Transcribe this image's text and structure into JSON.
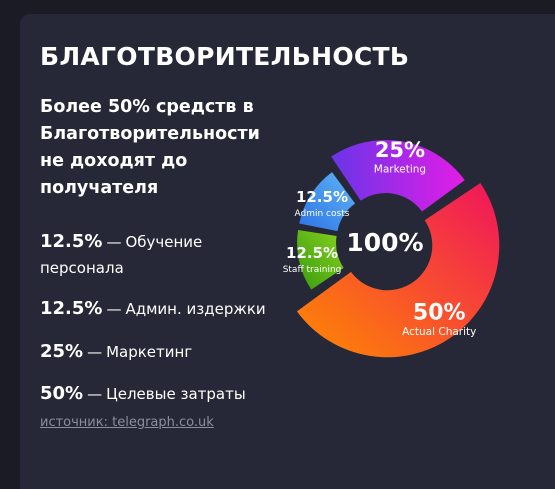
{
  "title": "БЛАГОТВОРИТЕЛЬНОСТЬ",
  "lead_lines": [
    "Более 50% средств в",
    "Благотворительности",
    "не доходят до",
    "получателя"
  ],
  "items": [
    {
      "value": "12.5%",
      "dash": "—",
      "text_lines": [
        "Обучение",
        "персонала"
      ]
    },
    {
      "value": "12.5%",
      "dash": "—",
      "text_lines": [
        "Админ. издержки"
      ]
    },
    {
      "value": "25%",
      "dash": "—",
      "text_lines": [
        "Маркетинг"
      ]
    },
    {
      "value": "50%",
      "dash": "—",
      "text_lines": [
        "Целевые затраты"
      ]
    }
  ],
  "source": "источник: telegraph.co.uk",
  "chart_data": {
    "type": "pie",
    "center_label": "100%",
    "slices": [
      {
        "name": "Actual Charity",
        "label": "50%",
        "value": 50,
        "colors": [
          "#f0145c",
          "#ff8a00"
        ]
      },
      {
        "name": "Staff training",
        "label": "12.5%",
        "value": 12.5,
        "colors": [
          "#3a9a10",
          "#86d21e"
        ]
      },
      {
        "name": "Admin costs",
        "label": "12.5%",
        "value": 12.5,
        "colors": [
          "#2d73e6",
          "#5fb4f4"
        ]
      },
      {
        "name": "Marketing",
        "label": "25%",
        "value": 25,
        "colors": [
          "#6a35e8",
          "#e21de6"
        ]
      }
    ]
  }
}
